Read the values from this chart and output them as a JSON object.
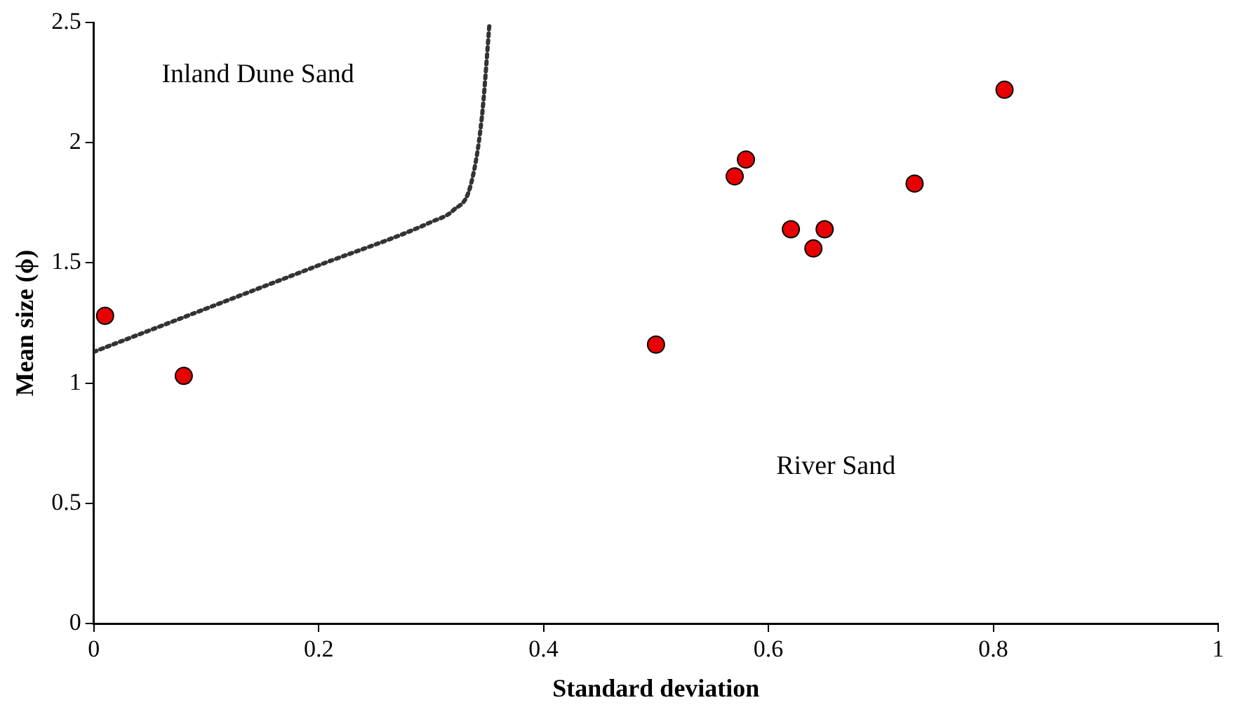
{
  "chart_data": {
    "type": "scatter",
    "xlabel": "Standard deviation",
    "ylabel": "Mean size (ϕ)",
    "xlim": [
      0,
      1
    ],
    "xticks": [
      0,
      0.2,
      0.4,
      0.6,
      0.8,
      1
    ],
    "ylim": [
      0,
      2.5
    ],
    "yticks": [
      0,
      0.5,
      1,
      1.5,
      2,
      2.5
    ],
    "grid": false,
    "legend": false,
    "series": [
      {
        "marker": "circle",
        "color": "#e80000",
        "x": [
          0.01,
          0.08,
          0.5,
          0.57,
          0.58,
          0.62,
          0.64,
          0.65,
          0.73,
          0.81
        ],
        "values": [
          1.28,
          1.03,
          1.16,
          1.86,
          1.93,
          1.64,
          1.56,
          1.64,
          1.83,
          2.22
        ]
      },
      {
        "type": "line",
        "marker": "none",
        "line_style": "dotted",
        "color": "#333333",
        "x": [
          0,
          0.1,
          0.2,
          0.3,
          0.32,
          0.335,
          0.345,
          0.352
        ],
        "values": [
          1.13,
          1.31,
          1.49,
          1.67,
          1.72,
          1.82,
          2.1,
          2.5
        ]
      }
    ],
    "annotations": [
      "Inland Dune Sand",
      "River Sand"
    ]
  }
}
